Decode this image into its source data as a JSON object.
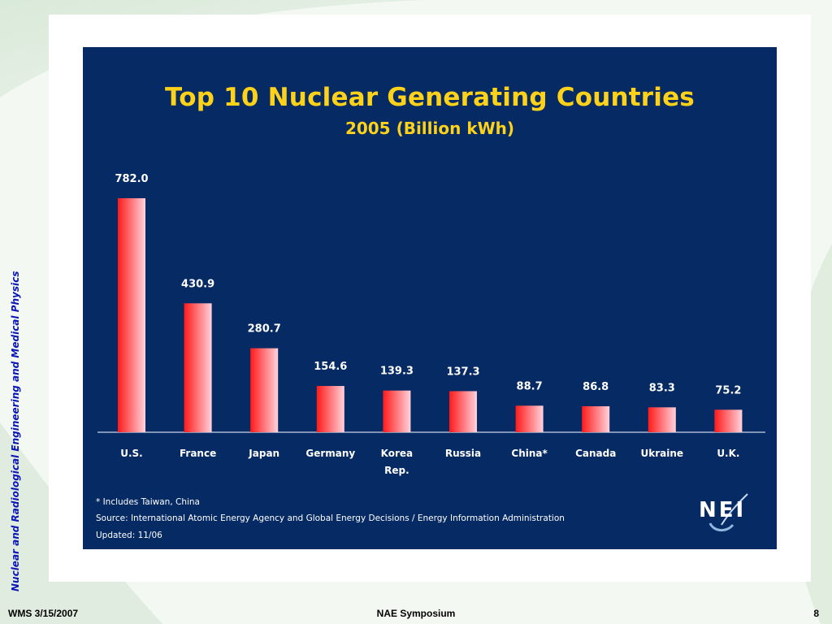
{
  "slide": {
    "side_title": "Nuclear and Radiological Engineering and Medical Physics",
    "footer_left": "WMS 3/15/2007",
    "footer_center": "NAE Symposium",
    "footer_right": "8"
  },
  "chart_data": {
    "type": "bar",
    "title": "Top 10 Nuclear Generating Countries",
    "subtitle": "2005 (Billion kWh)",
    "categories": [
      "U.S.",
      "France",
      "Japan",
      "Germany",
      "Korea Rep.",
      "Russia",
      "China*",
      "Canada",
      "Ukraine",
      "U.K."
    ],
    "category_lines": [
      [
        "U.S."
      ],
      [
        "France"
      ],
      [
        "Japan"
      ],
      [
        "Germany"
      ],
      [
        "Korea",
        "Rep."
      ],
      [
        "Russia"
      ],
      [
        "China*"
      ],
      [
        "Canada"
      ],
      [
        "Ukraine"
      ],
      [
        "U.K."
      ]
    ],
    "values": [
      782.0,
      430.9,
      280.7,
      154.6,
      139.3,
      137.3,
      88.7,
      86.8,
      83.3,
      75.2
    ],
    "value_labels": [
      "782.0",
      "430.9",
      "280.7",
      "154.6",
      "139.3",
      "137.3",
      "88.7",
      "86.8",
      "83.3",
      "75.2"
    ],
    "ylim": [
      0,
      782.0
    ],
    "grid": false,
    "bar_color_light": "#ffd3dc",
    "bar_color_dark": "#ff1a1a",
    "footnotes": [
      "* Includes Taiwan, China",
      "Source: International Atomic Energy Agency and Global Energy Decisions / Energy Information Administration",
      "Updated: 11/06"
    ],
    "logo_text": "NEI"
  },
  "colors": {
    "chart_background": "#062a63",
    "title": "#ffd21a",
    "side_title": "#0a16b8",
    "text": "#ffffff"
  }
}
